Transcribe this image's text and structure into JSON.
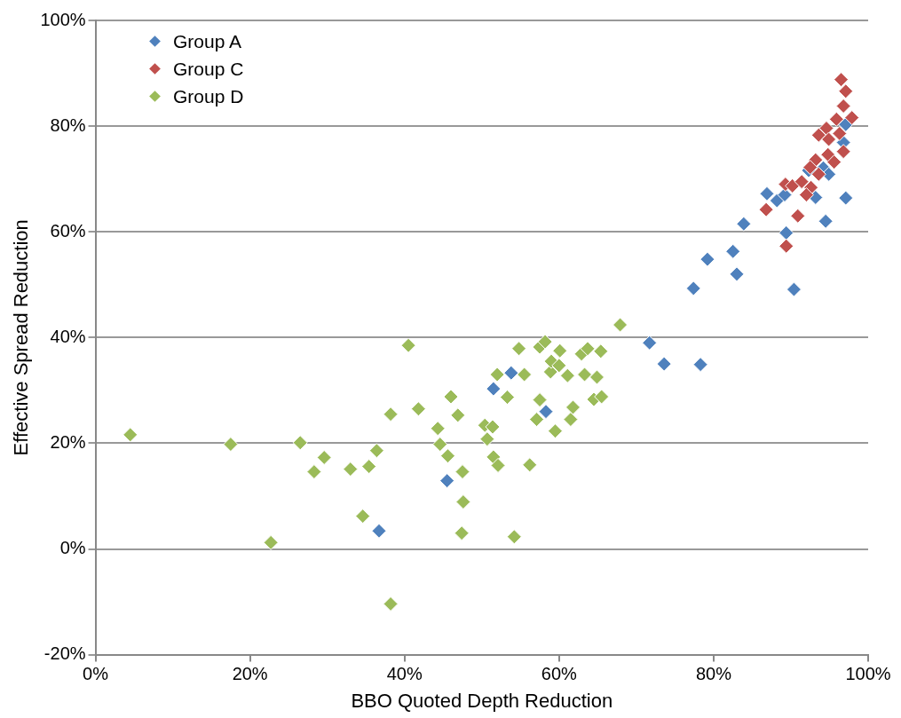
{
  "chart_data": {
    "type": "scatter",
    "xlabel": "BBO Quoted Depth Reduction",
    "ylabel": "Effective Spread Reduction",
    "xlim": [
      0,
      100
    ],
    "ylim": [
      -20,
      100
    ],
    "xticks": [
      {
        "value": 0,
        "label": "0%"
      },
      {
        "value": 20,
        "label": "20%"
      },
      {
        "value": 40,
        "label": "40%"
      },
      {
        "value": 60,
        "label": "60%"
      },
      {
        "value": 80,
        "label": "80%"
      },
      {
        "value": 100,
        "label": "100%"
      }
    ],
    "yticks": [
      {
        "value": -20,
        "label": "-20%"
      },
      {
        "value": 0,
        "label": "0%"
      },
      {
        "value": 20,
        "label": "20%"
      },
      {
        "value": 40,
        "label": "40%"
      },
      {
        "value": 60,
        "label": "60%"
      },
      {
        "value": 80,
        "label": "80%"
      },
      {
        "value": 100,
        "label": "100%"
      }
    ],
    "grid": "y",
    "legend": "top left",
    "marker": "diamond",
    "series": [
      {
        "name": "Group A",
        "color": "#4f81bd",
        "x": [
          36.7,
          45.5,
          51.5,
          53.8,
          58.3,
          71.7,
          73.6,
          78.3,
          77.4,
          79.2,
          82.5,
          83.0,
          83.9,
          86.9,
          88.2,
          89.2,
          89.4,
          90.4,
          92.3,
          93.2,
          94.2,
          94.5,
          94.9,
          96.8,
          97.1,
          97.1
        ],
        "values": [
          3.4,
          12.9,
          30.3,
          33.3,
          26.0,
          39.0,
          35.0,
          34.9,
          49.3,
          54.8,
          56.3,
          52.0,
          61.5,
          67.2,
          65.9,
          67.0,
          59.8,
          49.1,
          71.6,
          66.5,
          72.1,
          62.0,
          70.9,
          76.9,
          66.4,
          80.3
        ]
      },
      {
        "name": "Group C",
        "color": "#c0504d",
        "x": [
          96.5,
          97.1,
          96.8,
          95.9,
          97.9,
          94.6,
          93.6,
          94.9,
          96.3,
          94.8,
          96.8,
          95.6,
          93.2,
          92.5,
          93.6,
          89.3,
          90.2,
          91.4,
          92.6,
          92.0,
          86.8,
          90.9,
          89.4
        ],
        "values": [
          88.8,
          86.6,
          83.8,
          81.3,
          81.6,
          79.6,
          78.3,
          77.5,
          78.6,
          74.6,
          75.2,
          73.2,
          73.6,
          72.2,
          70.9,
          69.0,
          68.7,
          69.5,
          68.4,
          67.0,
          64.2,
          63.0,
          57.3
        ]
      },
      {
        "name": "Group D",
        "color": "#9bbb59",
        "x": [
          4.5,
          17.5,
          22.7,
          26.5,
          28.3,
          29.6,
          33.0,
          35.4,
          36.4,
          34.6,
          38.2,
          38.2,
          40.5,
          41.8,
          44.3,
          44.6,
          45.6,
          46.0,
          46.9,
          47.5,
          47.6,
          47.4,
          50.4,
          50.7,
          51.4,
          51.5,
          52.1,
          52.0,
          53.3,
          54.2,
          54.8,
          55.5,
          56.2,
          57.1,
          57.5,
          57.5,
          58.2,
          58.9,
          59.0,
          59.5,
          60.0,
          60.1,
          61.1,
          61.5,
          61.8,
          62.9,
          63.3,
          63.7,
          64.5,
          64.9,
          65.4,
          65.5,
          67.9
        ],
        "values": [
          21.6,
          19.8,
          1.2,
          20.1,
          14.6,
          17.3,
          15.1,
          15.6,
          18.6,
          6.2,
          25.5,
          -10.4,
          38.5,
          26.5,
          22.8,
          19.8,
          17.6,
          28.8,
          25.3,
          14.6,
          8.9,
          3.0,
          23.4,
          20.8,
          23.1,
          17.4,
          15.8,
          33.0,
          28.7,
          2.3,
          37.9,
          33.0,
          15.9,
          24.5,
          28.2,
          38.2,
          39.2,
          33.5,
          35.5,
          22.3,
          34.7,
          37.5,
          32.8,
          24.5,
          26.8,
          36.9,
          33.0,
          37.9,
          28.3,
          32.5,
          37.4,
          28.8,
          42.4
        ]
      }
    ]
  }
}
